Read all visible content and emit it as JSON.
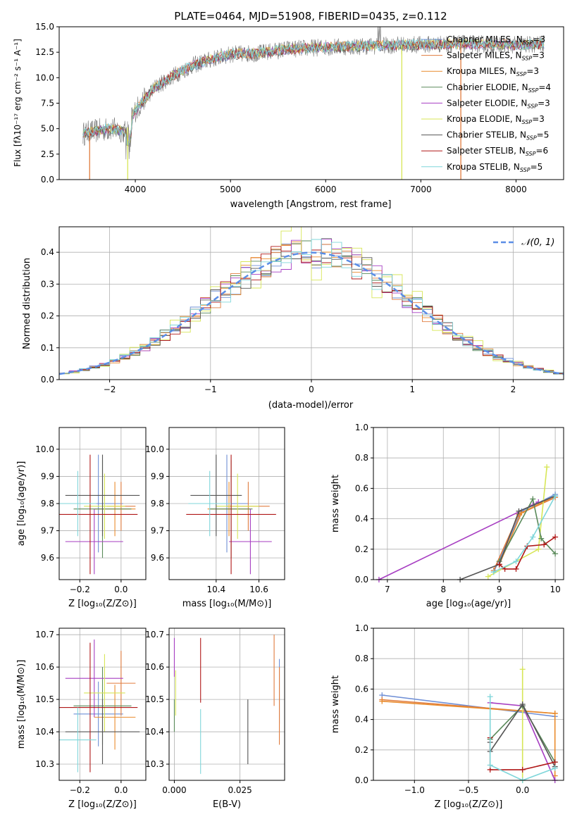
{
  "colors": {
    "chabrier_miles": "#6f8fd6",
    "salpeter_miles": "#e07c3e",
    "kroupa_miles": "#e98c2e",
    "chabrier_elodie": "#5a8a5a",
    "salpeter_elodie": "#a73ec2",
    "kroupa_elodie": "#d7e657",
    "chabrier_stelib": "#555555",
    "salpeter_stelib": "#b01818",
    "kroupa_stelib": "#7fd6da"
  },
  "spectrum": {
    "title": "PLATE=0464, MJD=51908, FIBERID=0435, z=0.112",
    "ylabel": "Flux [fλ10⁻¹⁷ erg cm⁻² s⁻¹ A⁻¹]",
    "xlabel": "wavelength [Angstrom, rest frame]",
    "legend": [
      "Chabrier MILES, N_SSP=3",
      "Salpeter MILES, N_SSP=3",
      "Kroupa MILES, N_SSP=3",
      "Chabrier ELODIE, N_SSP=4",
      "Salpeter ELODIE, N_SSP=3",
      "Kroupa ELODIE, N_SSP=3",
      "Chabrier STELIB, N_SSP=5",
      "Salpeter STELIB, N_SSP=6",
      "Kroupa STELIB, N_SSP=5"
    ]
  },
  "chart_data": [
    {
      "type": "line",
      "xlim": [
        3200,
        8500
      ],
      "ylim": [
        0,
        15
      ],
      "xticks": [
        "4000",
        "5000",
        "6000",
        "7000",
        "8000"
      ],
      "yticks": [
        "0.0",
        "2.5",
        "5.0",
        "7.5",
        "10.0",
        "12.5",
        "15.0"
      ],
      "continuum_x": [
        3450,
        3600,
        3750,
        3900,
        4000,
        4200,
        4400,
        4600,
        4800,
        5000,
        5300,
        5600,
        6000,
        6400,
        6800,
        7200,
        7600,
        8000,
        8300
      ],
      "continuum_y": [
        4.5,
        4.8,
        5.0,
        4.7,
        6.8,
        9.0,
        10.2,
        11.2,
        11.8,
        12.3,
        12.4,
        12.8,
        13.0,
        13.1,
        13.2,
        13.3,
        13.3,
        13.2,
        13.3
      ],
      "drop_lines_x": [
        3520,
        3920,
        6800,
        7420
      ],
      "grid": false,
      "legend_position": "right"
    },
    {
      "type": "step",
      "title": "",
      "xlabel": "(data-model)/error",
      "ylabel": "Normed distribution",
      "xlim": [
        -2.5,
        2.5
      ],
      "ylim": [
        0,
        0.48
      ],
      "xticks": [
        "−2",
        "−1",
        "0",
        "1",
        "2"
      ],
      "yticks": [
        "0.0",
        "0.1",
        "0.2",
        "0.3",
        "0.4"
      ],
      "legend": "𝒩(0, 1)",
      "grid": true,
      "bin_width": 0.1,
      "bins_from": -2.5,
      "bins_to": 2.5
    },
    {
      "type": "errorbar",
      "xlabel": "Z [log₁₀(Z/Z⊙)]",
      "ylabel": "age  [log₁₀(age/yr)]",
      "xlim": [
        -0.3,
        0.12
      ],
      "ylim": [
        9.52,
        10.08
      ],
      "xticks": [
        "−0.2",
        "0.0"
      ],
      "yticks": [
        "9.6",
        "9.7",
        "9.8",
        "9.9",
        "10.0"
      ],
      "points": [
        {
          "c": "chabrier_miles",
          "x": -0.11,
          "xe": 0.12,
          "y": 9.8,
          "ye": 0.18
        },
        {
          "c": "salpeter_miles",
          "x": 0.0,
          "xe": 0.07,
          "y": 9.79,
          "ye": 0.09
        },
        {
          "c": "kroupa_miles",
          "x": -0.03,
          "xe": 0.1,
          "y": 9.78,
          "ye": 0.1
        },
        {
          "c": "chabrier_elodie",
          "x": -0.09,
          "xe": 0.14,
          "y": 9.78,
          "ye": 0.18
        },
        {
          "c": "salpeter_elodie",
          "x": -0.13,
          "xe": 0.14,
          "y": 9.66,
          "ye": 0.12
        },
        {
          "c": "kroupa_elodie",
          "x": -0.08,
          "xe": 0.1,
          "y": 9.79,
          "ye": 0.12
        },
        {
          "c": "chabrier_stelib",
          "x": -0.09,
          "xe": 0.18,
          "y": 9.83,
          "ye": 0.15
        },
        {
          "c": "salpeter_stelib",
          "x": -0.15,
          "xe": 0.23,
          "y": 9.76,
          "ye": 0.22
        },
        {
          "c": "kroupa_stelib",
          "x": -0.21,
          "xe": 0.09,
          "y": 9.8,
          "ye": 0.12
        }
      ]
    },
    {
      "type": "errorbar",
      "xlabel": "mass [log₁₀(M/M⊙)]",
      "xlim": [
        10.18,
        10.72
      ],
      "ylim": [
        9.52,
        10.08
      ],
      "xticks": [
        "10.4",
        "10.6"
      ],
      "yticks": [
        "9.6",
        "9.7",
        "9.8",
        "9.9",
        "10.0"
      ],
      "points": [
        {
          "c": "chabrier_miles",
          "x": 10.45,
          "xe": 0.1,
          "y": 9.8,
          "ye": 0.18
        },
        {
          "c": "salpeter_miles",
          "x": 10.55,
          "xe": 0.1,
          "y": 9.79,
          "ye": 0.09
        },
        {
          "c": "kroupa_miles",
          "x": 10.46,
          "xe": 0.1,
          "y": 9.78,
          "ye": 0.1
        },
        {
          "c": "chabrier_elodie",
          "x": 10.47,
          "xe": 0.1,
          "y": 9.78,
          "ye": 0.18
        },
        {
          "c": "salpeter_elodie",
          "x": 10.56,
          "xe": 0.1,
          "y": 9.66,
          "ye": 0.12
        },
        {
          "c": "kroupa_elodie",
          "x": 10.5,
          "xe": 0.1,
          "y": 9.79,
          "ye": 0.12
        },
        {
          "c": "chabrier_stelib",
          "x": 10.4,
          "xe": 0.12,
          "y": 9.83,
          "ye": 0.15
        },
        {
          "c": "salpeter_stelib",
          "x": 10.47,
          "xe": 0.21,
          "y": 9.76,
          "ye": 0.22
        },
        {
          "c": "kroupa_stelib",
          "x": 10.37,
          "xe": 0.1,
          "y": 9.8,
          "ye": 0.12
        }
      ]
    },
    {
      "type": "line",
      "xlabel": "age  [log₁₀(age/yr)]",
      "ylabel": "mass weight",
      "xlim": [
        6.75,
        10.15
      ],
      "ylim": [
        0,
        1
      ],
      "xticks": [
        "7",
        "8",
        "9",
        "10"
      ],
      "yticks": [
        "0.0",
        "0.2",
        "0.4",
        "0.6",
        "0.8",
        "1.0"
      ],
      "grid": true,
      "series": [
        {
          "c": "salpeter_elodie",
          "x": [
            6.85,
            9.6,
            9.7
          ],
          "y": [
            0.0,
            0.49,
            0.51
          ]
        },
        {
          "c": "chabrier_miles",
          "x": [
            8.9,
            9.4,
            10.0
          ],
          "y": [
            0.05,
            0.45,
            0.56
          ]
        },
        {
          "c": "salpeter_miles",
          "x": [
            8.9,
            9.35,
            10.0
          ],
          "y": [
            0.06,
            0.43,
            0.54
          ]
        },
        {
          "c": "kroupa_miles",
          "x": [
            9.0,
            9.4,
            10.0
          ],
          "y": [
            0.1,
            0.44,
            0.55
          ]
        },
        {
          "c": "kroupa_elodie",
          "x": [
            8.8,
            9.7,
            9.85
          ],
          "y": [
            0.02,
            0.2,
            0.74
          ]
        },
        {
          "c": "chabrier_elodie",
          "x": [
            9.0,
            9.6,
            9.75,
            10.0
          ],
          "y": [
            0.12,
            0.53,
            0.27,
            0.17
          ]
        },
        {
          "c": "chabrier_stelib",
          "x": [
            8.3,
            9.0,
            9.35,
            10.0
          ],
          "y": [
            0.0,
            0.1,
            0.45,
            0.55
          ]
        },
        {
          "c": "salpeter_stelib",
          "x": [
            9.0,
            9.1,
            9.3,
            9.5,
            9.8,
            10.0
          ],
          "y": [
            0.1,
            0.07,
            0.07,
            0.22,
            0.23,
            0.28
          ]
        },
        {
          "c": "kroupa_stelib",
          "x": [
            8.9,
            9.3,
            9.6,
            10.0
          ],
          "y": [
            0.05,
            0.12,
            0.28,
            0.55
          ]
        }
      ]
    },
    {
      "type": "errorbar",
      "xlabel": "Z [log₁₀(Z/Z⊙)]",
      "ylabel": "mass [log₁₀(M/M⊙)]",
      "xlim": [
        -0.3,
        0.12
      ],
      "ylim": [
        10.25,
        10.72
      ],
      "xticks": [
        "−0.2",
        "0.0"
      ],
      "yticks": [
        "10.3",
        "10.4",
        "10.5",
        "10.6",
        "10.7"
      ],
      "points": [
        {
          "c": "chabrier_miles",
          "x": -0.11,
          "xe": 0.12,
          "y": 10.455,
          "ye": 0.1
        },
        {
          "c": "salpeter_miles",
          "x": 0.0,
          "xe": 0.07,
          "y": 10.55,
          "ye": 0.1
        },
        {
          "c": "kroupa_miles",
          "x": -0.03,
          "xe": 0.1,
          "y": 10.445,
          "ye": 0.1
        },
        {
          "c": "chabrier_elodie",
          "x": -0.09,
          "xe": 0.14,
          "y": 10.48,
          "ye": 0.12
        },
        {
          "c": "salpeter_elodie",
          "x": -0.13,
          "xe": 0.14,
          "y": 10.565,
          "ye": 0.12
        },
        {
          "c": "kroupa_elodie",
          "x": -0.08,
          "xe": 0.1,
          "y": 10.52,
          "ye": 0.12
        },
        {
          "c": "chabrier_stelib",
          "x": -0.09,
          "xe": 0.18,
          "y": 10.4,
          "ye": 0.1
        },
        {
          "c": "salpeter_stelib",
          "x": -0.15,
          "xe": 0.23,
          "y": 10.475,
          "ye": 0.2
        },
        {
          "c": "kroupa_stelib",
          "x": -0.21,
          "xe": 0.09,
          "y": 10.375,
          "ye": 0.1
        }
      ]
    },
    {
      "type": "errorbar",
      "xlabel": "E(B-V)",
      "xlim": [
        -0.002,
        0.042
      ],
      "ylim": [
        10.25,
        10.72
      ],
      "xticks": [
        "0.000",
        "0.025"
      ],
      "yticks": [
        "10.3",
        "10.4",
        "10.5",
        "10.6",
        "10.7"
      ],
      "points": [
        {
          "c": "chabrier_miles",
          "x": 0.04,
          "y": 10.525,
          "ye": 0.1
        },
        {
          "c": "salpeter_miles",
          "x": 0.04,
          "y": 10.48,
          "ye": 0.12
        },
        {
          "c": "kroupa_elodie",
          "x": 0.0005,
          "y": 10.52,
          "ye": 0.07
        },
        {
          "c": "salpeter_elodie",
          "x": 0.0,
          "y": 10.63,
          "ye": 0.06
        },
        {
          "c": "chabrier_elodie",
          "x": 0.0,
          "y": 10.45,
          "ye": 0.05
        },
        {
          "c": "salpeter_stelib",
          "x": 0.01,
          "y": 10.59,
          "ye": 0.1
        },
        {
          "c": "kroupa_stelib",
          "x": 0.01,
          "y": 10.37,
          "ye": 0.1
        },
        {
          "c": "chabrier_stelib",
          "x": 0.028,
          "y": 10.4,
          "ye": 0.1
        },
        {
          "c": "salpeter_miles",
          "x": 0.038,
          "y": 10.59,
          "ye": 0.11
        }
      ]
    },
    {
      "type": "line",
      "xlabel": "Z [log₁₀(Z/Z⊙)]",
      "ylabel": "mass weight",
      "xlim": [
        -1.38,
        0.38
      ],
      "ylim": [
        0,
        1
      ],
      "xticks": [
        "−1.0",
        "−0.5",
        "0.0"
      ],
      "yticks": [
        "0.0",
        "0.2",
        "0.4",
        "0.6",
        "0.8",
        "1.0"
      ],
      "grid": true,
      "series": [
        {
          "c": "chabrier_miles",
          "x": [
            -1.3,
            0.3
          ],
          "y": [
            0.56,
            0.42
          ]
        },
        {
          "c": "salpeter_miles",
          "x": [
            -1.3,
            0.3
          ],
          "y": [
            0.53,
            0.44
          ]
        },
        {
          "c": "kroupa_miles",
          "x": [
            -1.3,
            0.3,
            0.3
          ],
          "y": [
            0.52,
            0.44,
            0.03
          ]
        },
        {
          "c": "salpeter_elodie",
          "x": [
            -0.3,
            0.0,
            0.3
          ],
          "y": [
            0.51,
            0.49,
            0.0
          ]
        },
        {
          "c": "kroupa_elodie",
          "x": [
            0.0,
            0.0
          ],
          "y": [
            0.73,
            0.0
          ]
        },
        {
          "c": "chabrier_elodie",
          "x": [
            -0.3,
            0.0,
            0.3
          ],
          "y": [
            0.27,
            0.49,
            0.12
          ]
        },
        {
          "c": "chabrier_stelib",
          "x": [
            -0.3,
            -0.3,
            0.0,
            0.3
          ],
          "y": [
            0.25,
            0.19,
            0.5,
            0.09
          ]
        },
        {
          "c": "salpeter_stelib",
          "x": [
            -0.3,
            -0.3,
            0.0,
            0.3
          ],
          "y": [
            0.28,
            0.07,
            0.07,
            0.12
          ]
        },
        {
          "c": "kroupa_stelib",
          "x": [
            -0.3,
            -0.3,
            0.0,
            0.3
          ],
          "y": [
            0.55,
            0.1,
            0.0,
            0.08
          ]
        }
      ]
    }
  ]
}
